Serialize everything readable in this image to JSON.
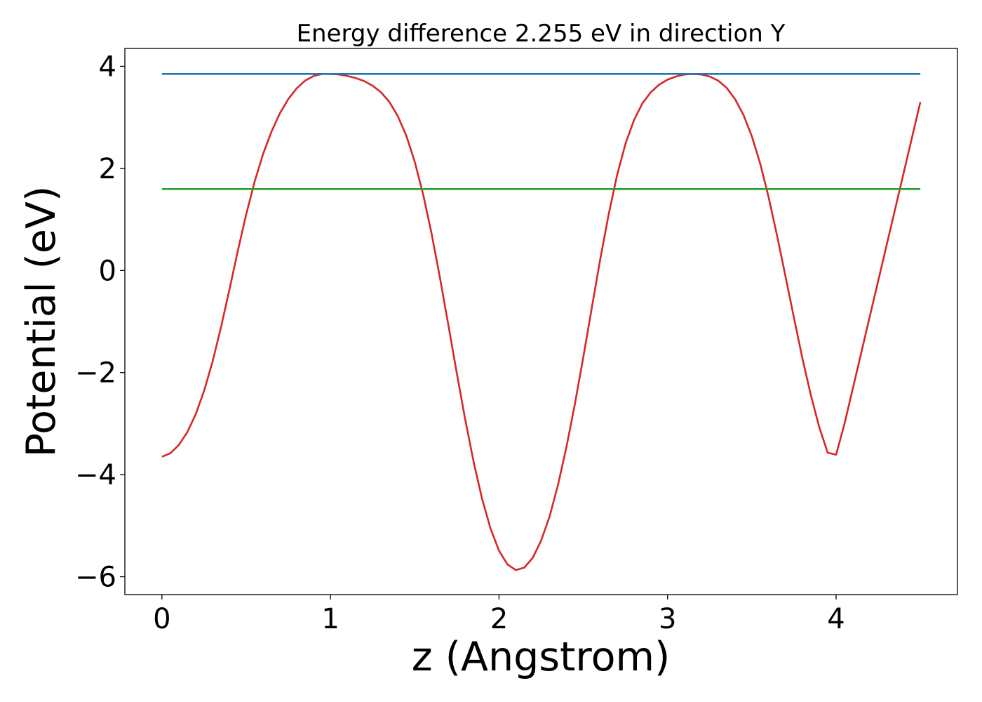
{
  "chart_data": {
    "type": "line",
    "title": "Energy difference 2.255 eV in direction Y",
    "xlabel": "z (Angstrom)",
    "ylabel": "Potential (eV)",
    "xlim": [
      -0.22,
      4.72
    ],
    "ylim": [
      -6.35,
      4.35
    ],
    "xticks": [
      0,
      1,
      2,
      3,
      4
    ],
    "xtick_labels": [
      "0",
      "1",
      "2",
      "3",
      "4"
    ],
    "yticks": [
      -6,
      -4,
      -2,
      0,
      2,
      4
    ],
    "ytick_labels": [
      "−6",
      "−4",
      "−2",
      "0",
      "2",
      "4"
    ],
    "grid": false,
    "series": [
      {
        "color": "#d62728",
        "x": [
          0.0,
          0.05,
          0.1,
          0.15,
          0.2,
          0.25,
          0.3,
          0.35,
          0.4,
          0.45,
          0.5,
          0.55,
          0.6,
          0.65,
          0.7,
          0.75,
          0.8,
          0.85,
          0.9,
          0.95,
          1.0,
          1.05,
          1.1,
          1.15,
          1.2,
          1.25,
          1.3,
          1.35,
          1.4,
          1.45,
          1.5,
          1.55,
          1.6,
          1.65,
          1.7,
          1.75,
          1.8,
          1.85,
          1.9,
          1.95,
          2.0,
          2.05,
          2.1,
          2.15,
          2.2,
          2.25,
          2.3,
          2.35,
          2.4,
          2.45,
          2.5,
          2.55,
          2.6,
          2.65,
          2.7,
          2.75,
          2.8,
          2.85,
          2.9,
          2.95,
          3.0,
          3.05,
          3.1,
          3.15,
          3.2,
          3.25,
          3.3,
          3.35,
          3.4,
          3.45,
          3.5,
          3.55,
          3.6,
          3.65,
          3.7,
          3.75,
          3.8,
          3.85,
          3.9,
          3.95,
          4.0,
          4.05,
          4.1,
          4.15,
          4.2,
          4.25,
          4.3,
          4.35,
          4.4,
          4.45,
          4.5
        ],
        "y": [
          -3.65,
          -3.58,
          -3.42,
          -3.17,
          -2.82,
          -2.36,
          -1.79,
          -1.12,
          -0.38,
          0.38,
          1.1,
          1.74,
          2.28,
          2.72,
          3.08,
          3.36,
          3.57,
          3.72,
          3.81,
          3.85,
          3.85,
          3.84,
          3.81,
          3.77,
          3.71,
          3.62,
          3.49,
          3.3,
          3.02,
          2.64,
          2.13,
          1.49,
          0.72,
          -0.15,
          -1.08,
          -2.02,
          -2.93,
          -3.76,
          -4.48,
          -5.06,
          -5.49,
          -5.76,
          -5.87,
          -5.82,
          -5.63,
          -5.29,
          -4.82,
          -4.2,
          -3.46,
          -2.62,
          -1.7,
          -0.74,
          0.21,
          1.09,
          1.86,
          2.48,
          2.94,
          3.27,
          3.49,
          3.64,
          3.74,
          3.8,
          3.84,
          3.85,
          3.84,
          3.8,
          3.72,
          3.58,
          3.36,
          3.05,
          2.63,
          2.09,
          1.43,
          0.68,
          -0.12,
          -0.93,
          -1.72,
          -2.44,
          -3.07,
          -3.57,
          -3.61,
          -3.0,
          -2.3,
          -1.6,
          -0.9,
          -0.2,
          0.5,
          1.2,
          1.9,
          2.6,
          3.3
        ]
      },
      {
        "color": "#1f77b4",
        "x": [
          0.0,
          4.5
        ],
        "y": [
          3.85,
          3.85
        ]
      },
      {
        "color": "#2ca02c",
        "x": [
          0.0,
          4.5
        ],
        "y": [
          1.595,
          1.595
        ]
      }
    ]
  }
}
